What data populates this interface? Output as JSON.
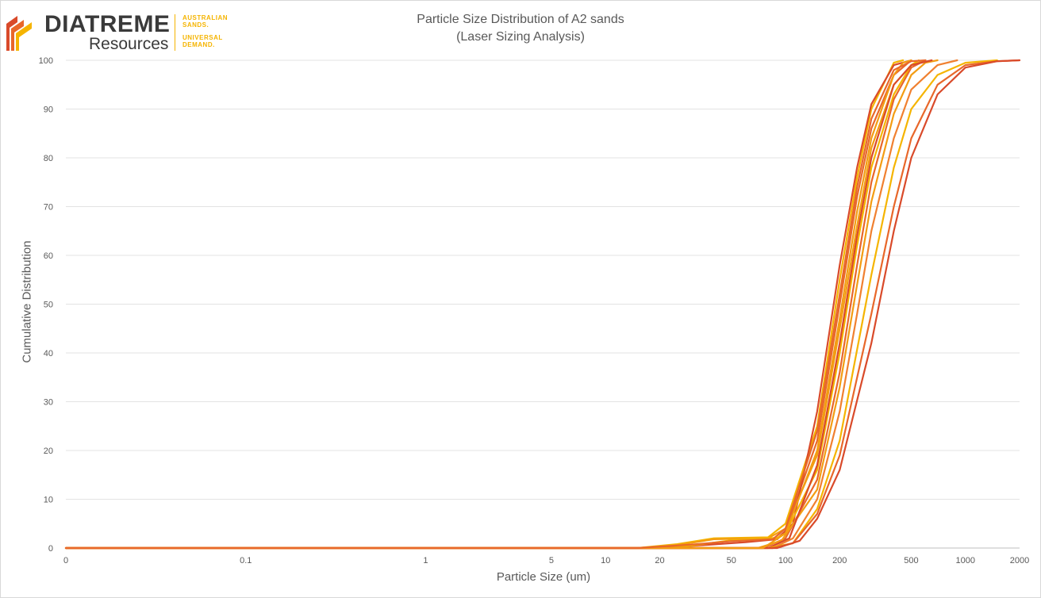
{
  "logo": {
    "name": "DIATREME",
    "sub": "Resources",
    "tagline_1": [
      "AUSTRALIAN",
      "SANDS."
    ],
    "tagline_2": [
      "UNIVERSAL",
      "DEMAND."
    ],
    "colors": {
      "gold": "#f5b400",
      "orange": "#e8672a",
      "red": "#d94a2a"
    }
  },
  "chart_data": {
    "type": "line",
    "title": "Particle Size Distribution of A2 sands",
    "subtitle": "(Laser Sizing Analysis)",
    "xlabel": "Particle Size (um)",
    "ylabel": "Cumulative Distribution",
    "x_scale": "log",
    "x_ticks": [
      "0",
      "0.1",
      "1",
      "5",
      "10",
      "20",
      "50",
      "100",
      "200",
      "500",
      "1000",
      "2000"
    ],
    "y_ticks": [
      0,
      10,
      20,
      30,
      40,
      50,
      60,
      70,
      80,
      90,
      100
    ],
    "ylim": [
      0,
      100
    ],
    "grid": "horizontal",
    "legend": "none",
    "series": [
      {
        "color": "#f5b400",
        "x": [
          0.01,
          15,
          25,
          40,
          80,
          100,
          150,
          200,
          250,
          300,
          400,
          450
        ],
        "y": [
          0,
          0,
          0.8,
          2,
          2.2,
          5,
          25,
          55,
          76,
          90,
          99.5,
          100
        ]
      },
      {
        "color": "#f39c12",
        "x": [
          0.01,
          15,
          25,
          40,
          80,
          100,
          150,
          200,
          250,
          300,
          400,
          500,
          600
        ],
        "y": [
          0,
          0,
          0.6,
          1.8,
          2,
          4,
          19,
          45,
          66,
          82,
          95,
          99,
          100
        ]
      },
      {
        "color": "#e8672a",
        "x": [
          0.01,
          18,
          30,
          50,
          90,
          100,
          150,
          200,
          250,
          300,
          400,
          500
        ],
        "y": [
          0,
          0,
          0.5,
          1.5,
          2,
          3.5,
          22,
          50,
          72,
          86,
          97,
          100
        ]
      },
      {
        "color": "#d94a2a",
        "x": [
          0.01,
          20,
          35,
          60,
          90,
          110,
          150,
          200,
          250,
          300,
          400,
          500
        ],
        "y": [
          0,
          0,
          0.6,
          1.2,
          1.8,
          5,
          28,
          58,
          78,
          91,
          99,
          100
        ]
      },
      {
        "color": "#f5b400",
        "x": [
          0.01,
          20,
          30,
          50,
          90,
          100,
          150,
          200,
          250,
          300,
          400,
          500,
          550
        ],
        "y": [
          0,
          0,
          0.5,
          1.6,
          2.1,
          3,
          16,
          40,
          62,
          78,
          93,
          99,
          100
        ]
      },
      {
        "color": "#e8672a",
        "x": [
          0.01,
          75,
          100,
          150,
          200,
          250,
          300,
          400,
          500,
          600
        ],
        "y": [
          0,
          0,
          2,
          14,
          36,
          58,
          75,
          92,
          98.5,
          100
        ]
      },
      {
        "color": "#f39c12",
        "x": [
          0.01,
          70,
          95,
          150,
          200,
          250,
          300,
          400,
          500,
          600,
          700
        ],
        "y": [
          0,
          0,
          1.5,
          12,
          33,
          54,
          71,
          89,
          97,
          99.5,
          100
        ]
      },
      {
        "color": "#d94a2a",
        "x": [
          0.01,
          80,
          105,
          150,
          200,
          250,
          300,
          400,
          500,
          650
        ],
        "y": [
          0,
          0,
          2,
          17,
          42,
          64,
          80,
          95,
          99,
          100
        ]
      },
      {
        "color": "#f08030",
        "x": [
          0.01,
          85,
          110,
          150,
          200,
          250,
          300,
          400,
          500,
          700,
          900
        ],
        "y": [
          0,
          0,
          2,
          10,
          28,
          48,
          65,
          84,
          94,
          99,
          100
        ]
      },
      {
        "color": "#f5b400",
        "x": [
          0.01,
          80,
          110,
          150,
          200,
          300,
          400,
          500,
          700,
          1000,
          1500
        ],
        "y": [
          0,
          0,
          1,
          8,
          22,
          56,
          78,
          90,
          97,
          99.5,
          100
        ]
      },
      {
        "color": "#e8672a",
        "x": [
          0.01,
          85,
          110,
          150,
          200,
          300,
          400,
          500,
          700,
          1000,
          1500,
          2000
        ],
        "y": [
          0,
          0,
          1,
          7,
          19,
          48,
          70,
          84,
          95,
          99,
          99.8,
          100
        ]
      },
      {
        "color": "#d94a2a",
        "x": [
          0.01,
          90,
          120,
          150,
          200,
          300,
          400,
          500,
          700,
          1000,
          1500,
          2000
        ],
        "y": [
          0,
          0,
          1.5,
          6,
          16,
          42,
          65,
          80,
          93,
          98.5,
          99.8,
          100
        ]
      },
      {
        "color": "#f39c12",
        "x": [
          0.01,
          75,
          100,
          150,
          200,
          250,
          300,
          400,
          450,
          500
        ],
        "y": [
          0,
          0,
          3,
          20,
          47,
          69,
          84,
          97,
          99.5,
          100
        ]
      },
      {
        "color": "#e8672a",
        "x": [
          0.01,
          15,
          30,
          50,
          85,
          100,
          150,
          200,
          250,
          300,
          400,
          500,
          600
        ],
        "y": [
          0,
          0,
          0.7,
          1.4,
          1.8,
          4,
          24,
          52,
          74,
          88,
          98,
          99.8,
          100
        ]
      }
    ]
  }
}
